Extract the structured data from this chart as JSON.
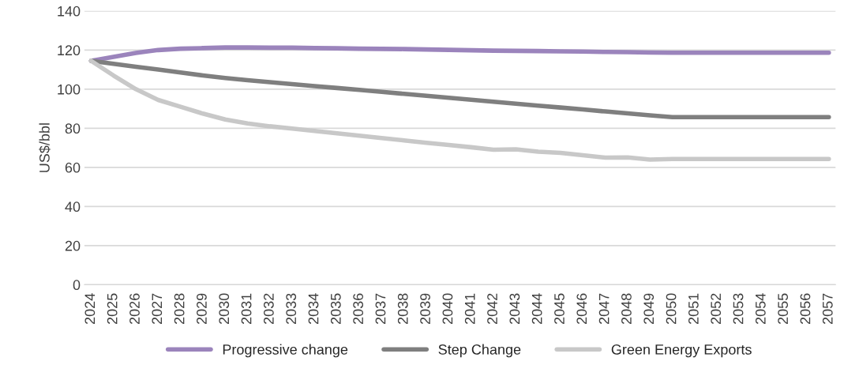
{
  "chart_data": {
    "type": "line",
    "ylabel": "US$/bbl",
    "categories": [
      "2024",
      "2025",
      "2026",
      "2027",
      "2028",
      "2029",
      "2030",
      "2031",
      "2032",
      "2033",
      "2034",
      "2035",
      "2036",
      "2037",
      "2038",
      "2039",
      "2040",
      "2041",
      "2042",
      "2043",
      "2044",
      "2045",
      "2046",
      "2047",
      "2048",
      "2049",
      "2050",
      "2051",
      "2052",
      "2053",
      "2054",
      "2055",
      "2056",
      "2057"
    ],
    "series": [
      {
        "name": "Progressive change",
        "color": "#9b84bc",
        "values": [
          114.5,
          116.5,
          118.5,
          120,
          120.7,
          121,
          121.3,
          121.3,
          121.2,
          121.2,
          121,
          120.9,
          120.7,
          120.6,
          120.5,
          120.3,
          120.1,
          119.9,
          119.7,
          119.6,
          119.5,
          119.3,
          119.2,
          119,
          118.9,
          118.7,
          118.6,
          118.6,
          118.6,
          118.6,
          118.6,
          118.6,
          118.6,
          118.6
        ]
      },
      {
        "name": "Step Change",
        "color": "#7f7f7f",
        "values": [
          114.5,
          113,
          111.5,
          110,
          108.5,
          107,
          105.7,
          104.6,
          103.6,
          102.6,
          101.6,
          100.6,
          99.6,
          98.6,
          97.6,
          96.6,
          95.6,
          94.6,
          93.6,
          92.6,
          91.6,
          90.6,
          89.6,
          88.6,
          87.6,
          86.6,
          85.7,
          85.7,
          85.7,
          85.7,
          85.7,
          85.7,
          85.7,
          85.7
        ]
      },
      {
        "name": "Green Energy Exports",
        "color": "#c8c8c8",
        "values": [
          114.5,
          107,
          100,
          94.5,
          91,
          87.5,
          84.5,
          82.5,
          81,
          79.8,
          78.6,
          77.4,
          76.2,
          75,
          73.8,
          72.6,
          71.5,
          70.3,
          69,
          69.2,
          68,
          67.4,
          66.2,
          65,
          65.1,
          64,
          64.3,
          64.3,
          64.3,
          64.3,
          64.3,
          64.3,
          64.3,
          64.3
        ]
      }
    ],
    "ylim": [
      0,
      140
    ],
    "yticks": [
      0,
      20,
      40,
      60,
      80,
      100,
      120,
      140
    ],
    "grid": "y",
    "legend": "bottom",
    "marker": "none",
    "line_style": "solid"
  }
}
